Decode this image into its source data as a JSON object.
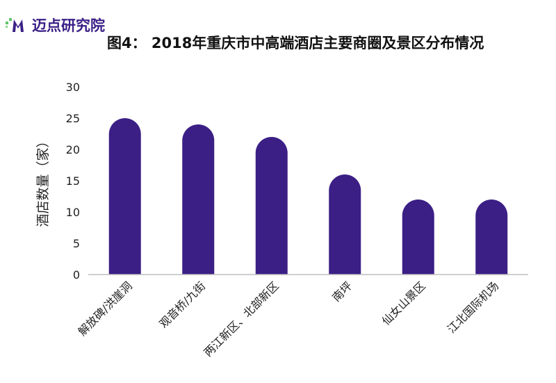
{
  "logo": {
    "text": "迈点研究院"
  },
  "chart_data": {
    "type": "bar",
    "title": "图4： 2018年重庆市中高端酒店主要商圈及景区分布情况",
    "ylabel": "酒店数量（家）",
    "xlabel": "",
    "categories": [
      "解放碑/洪崖洞",
      "观音桥/九街",
      "两江新区、北部新区",
      "南坪",
      "仙女山景区",
      "江北国际机场"
    ],
    "values": [
      25,
      24,
      22,
      16,
      12,
      12
    ],
    "ylim": [
      0,
      30
    ],
    "yticks": [
      0,
      5,
      10,
      15,
      20,
      25,
      30
    ],
    "grid": false,
    "legend": "none",
    "bar_color": "#3b1f85",
    "axis_color": "#bfbfbf"
  }
}
